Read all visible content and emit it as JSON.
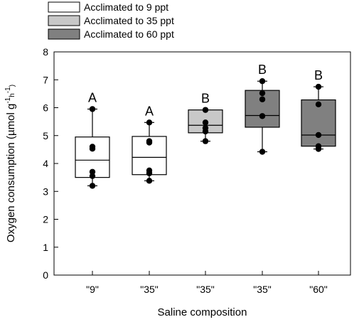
{
  "chart_data": {
    "type": "box",
    "xlabel": "Saline composition",
    "ylabel": "Oxygen consumption (µmol g⁻¹h⁻¹)",
    "ylim": [
      0,
      8
    ],
    "yticks": [
      "0",
      "1",
      "2",
      "3",
      "4",
      "5",
      "6",
      "7",
      "8"
    ],
    "legend": {
      "placement": "top-left",
      "entries": [
        {
          "label": "Acclimated to 9 ppt",
          "color": "#ffffff"
        },
        {
          "label": "Acclimated to 35 ppt",
          "color": "#c8c8c8"
        },
        {
          "label": "Acclimated to 60 ppt",
          "color": "#808080"
        }
      ]
    },
    "categories": [
      "\"9\"",
      "\"35\"",
      "\"35\"",
      "\"35\"",
      "\"60\""
    ],
    "boxes": [
      {
        "group": 0,
        "min": 3.2,
        "q1": 3.5,
        "median": 4.12,
        "q3": 4.95,
        "max": 5.95,
        "points": [
          5.95,
          4.6,
          4.53,
          3.7,
          3.55,
          3.2
        ],
        "letter": "A"
      },
      {
        "group": 0,
        "min": 3.38,
        "q1": 3.6,
        "median": 4.22,
        "q3": 4.97,
        "max": 5.47,
        "points": [
          5.47,
          4.8,
          4.75,
          3.75,
          3.65,
          3.38
        ],
        "letter": "A"
      },
      {
        "group": 1,
        "min": 4.8,
        "q1": 5.1,
        "median": 5.37,
        "q3": 5.92,
        "max": 5.92,
        "points": [
          5.92,
          5.47,
          5.27,
          5.15,
          4.8
        ],
        "letter": "B"
      },
      {
        "group": 2,
        "min": 4.42,
        "q1": 5.3,
        "median": 5.72,
        "q3": 6.62,
        "max": 6.95,
        "points": [
          6.95,
          6.52,
          6.3,
          5.7,
          4.42
        ],
        "letter": "B"
      },
      {
        "group": 2,
        "min": 4.52,
        "q1": 4.62,
        "median": 5.02,
        "q3": 6.28,
        "max": 6.75,
        "points": [
          6.75,
          6.12,
          5.02,
          4.62,
          4.52
        ],
        "letter": "B"
      }
    ]
  }
}
